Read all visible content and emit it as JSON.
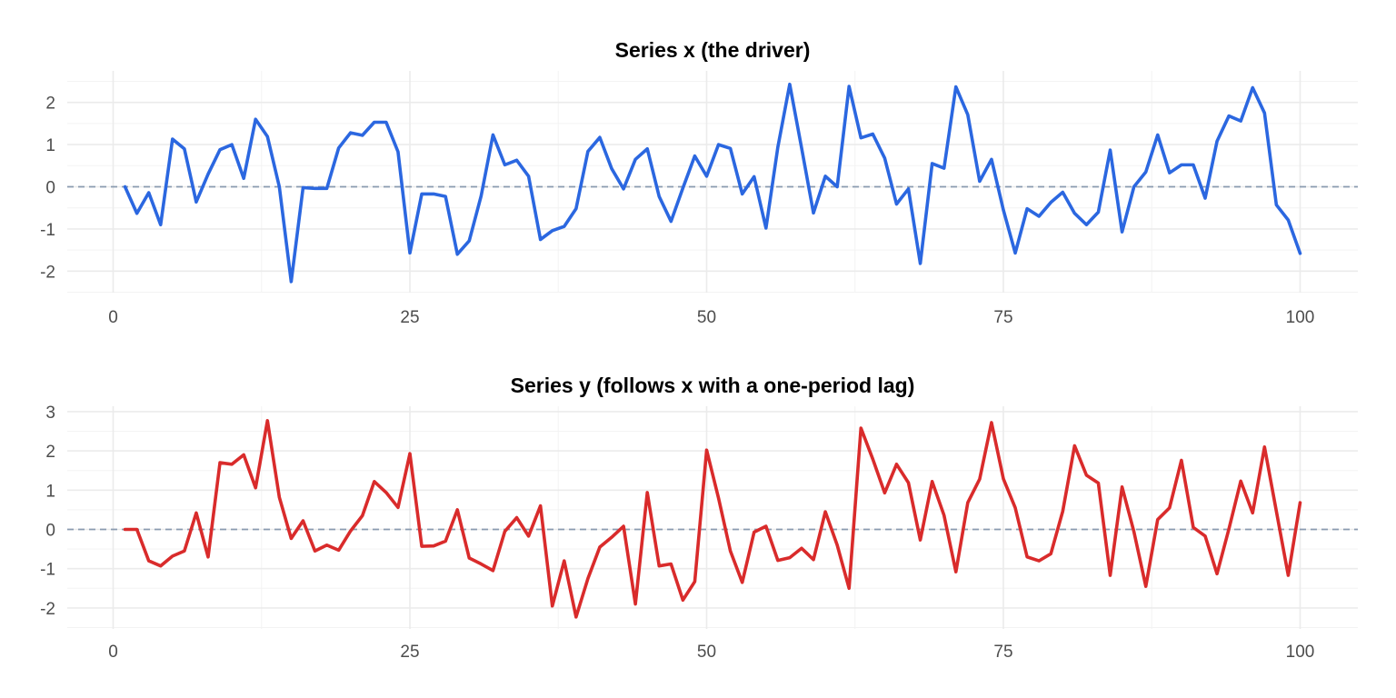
{
  "chart_data": [
    {
      "type": "line",
      "title": "Series x (the driver)",
      "xlabel": "",
      "ylabel": "",
      "xlim": [
        0,
        100
      ],
      "ylim": [
        -2.25,
        2.45
      ],
      "x_ticks": [
        0,
        25,
        50,
        75,
        100
      ],
      "x_tick_labels": [
        "0",
        "25",
        "50",
        "75",
        "100"
      ],
      "y_ticks": [
        -2,
        -1,
        0,
        1,
        2
      ],
      "y_tick_labels": [
        "-2",
        "-1",
        "0",
        "1",
        "2"
      ],
      "grid": true,
      "reference_line": {
        "y": 0,
        "style": "dashed",
        "color": "#8a9bb0"
      },
      "series": [
        {
          "color": "#2b67e0",
          "x": [
            1,
            2,
            3,
            4,
            5,
            6,
            7,
            8,
            9,
            10,
            11,
            12,
            13,
            14,
            15,
            16,
            17,
            18,
            19,
            20,
            21,
            22,
            23,
            24,
            25,
            26,
            27,
            28,
            29,
            30,
            31,
            32,
            33,
            34,
            35,
            36,
            37,
            38,
            39,
            40,
            41,
            42,
            43,
            44,
            45,
            46,
            47,
            48,
            49,
            50,
            51,
            52,
            53,
            54,
            55,
            56,
            57,
            58,
            59,
            60,
            61,
            62,
            63,
            64,
            65,
            66,
            67,
            68,
            69,
            70,
            71,
            72,
            73,
            74,
            75,
            76,
            77,
            78,
            79,
            80,
            81,
            82,
            83,
            84,
            85,
            86,
            87,
            88,
            89,
            90,
            91,
            92,
            93,
            94,
            95,
            96,
            97,
            98,
            99,
            100
          ],
          "values": [
            0.0,
            -0.63,
            -0.14,
            -0.9,
            1.13,
            0.9,
            -0.36,
            0.3,
            0.88,
            1.0,
            0.2,
            1.6,
            1.19,
            0.0,
            -2.25,
            -0.02,
            -0.04,
            -0.04,
            0.92,
            1.28,
            1.22,
            1.53,
            1.53,
            0.83,
            -1.57,
            -0.17,
            -0.17,
            -0.23,
            -1.6,
            -1.28,
            -0.22,
            1.23,
            0.52,
            0.63,
            0.25,
            -1.25,
            -1.04,
            -0.94,
            -0.52,
            0.84,
            1.17,
            0.43,
            -0.05,
            0.65,
            0.9,
            -0.23,
            -0.82,
            -0.03,
            0.73,
            0.25,
            1.0,
            0.91,
            -0.17,
            0.24,
            -0.98,
            0.94,
            2.43,
            0.92,
            -0.62,
            0.25,
            0.0,
            2.38,
            1.16,
            1.25,
            0.68,
            -0.41,
            -0.05,
            -1.82,
            0.55,
            0.44,
            2.37,
            1.71,
            0.13,
            0.65,
            -0.55,
            -1.57,
            -0.52,
            -0.7,
            -0.37,
            -0.13,
            -0.63,
            -0.9,
            -0.6,
            0.87,
            -1.07,
            0.0,
            0.35,
            1.23,
            0.33,
            0.52,
            0.52,
            -0.27,
            1.08,
            1.68,
            1.56,
            2.35,
            1.75,
            -0.43,
            -0.79,
            -1.58
          ]
        }
      ]
    },
    {
      "type": "line",
      "title": "Series y (follows x with a one-period lag)",
      "xlabel": "",
      "ylabel": "",
      "xlim": [
        0,
        100
      ],
      "ylim": [
        -2.25,
        2.8
      ],
      "x_ticks": [
        0,
        25,
        50,
        75,
        100
      ],
      "x_tick_labels": [
        "0",
        "25",
        "50",
        "75",
        "100"
      ],
      "y_ticks": [
        -2,
        -1,
        0,
        1,
        2,
        3
      ],
      "y_tick_labels": [
        "-2",
        "-1",
        "0",
        "1",
        "2",
        "3"
      ],
      "grid": true,
      "reference_line": {
        "y": 0,
        "style": "dashed",
        "color": "#8a9bb0"
      },
      "series": [
        {
          "color": "#d92b2b",
          "x": [
            1,
            2,
            3,
            4,
            5,
            6,
            7,
            8,
            9,
            10,
            11,
            12,
            13,
            14,
            15,
            16,
            17,
            18,
            19,
            20,
            21,
            22,
            23,
            24,
            25,
            26,
            27,
            28,
            29,
            30,
            31,
            32,
            33,
            34,
            35,
            36,
            37,
            38,
            39,
            40,
            41,
            42,
            43,
            44,
            45,
            46,
            47,
            48,
            49,
            50,
            51,
            52,
            53,
            54,
            55,
            56,
            57,
            58,
            59,
            60,
            61,
            62,
            63,
            64,
            65,
            66,
            67,
            68,
            69,
            70,
            71,
            72,
            73,
            74,
            75,
            76,
            77,
            78,
            79,
            80,
            81,
            82,
            83,
            84,
            85,
            86,
            87,
            88,
            89,
            90,
            91,
            92,
            93,
            94,
            95,
            96,
            97,
            98,
            99,
            100
          ],
          "values": [
            0.0,
            0.0,
            -0.8,
            -0.93,
            -0.68,
            -0.55,
            0.42,
            -0.7,
            1.7,
            1.66,
            1.9,
            1.06,
            2.77,
            0.82,
            -0.23,
            0.22,
            -0.55,
            -0.4,
            -0.53,
            -0.04,
            0.35,
            1.22,
            0.94,
            0.56,
            1.93,
            -0.43,
            -0.42,
            -0.3,
            0.5,
            -0.73,
            -0.88,
            -1.05,
            -0.05,
            0.3,
            -0.17,
            0.6,
            -1.95,
            -0.8,
            -2.23,
            -1.25,
            -0.45,
            -0.2,
            0.08,
            -1.9,
            0.94,
            -0.93,
            -0.88,
            -1.8,
            -1.33,
            2.02,
            0.8,
            -0.55,
            -1.35,
            -0.07,
            0.08,
            -0.79,
            -0.72,
            -0.48,
            -0.77,
            0.45,
            -0.4,
            -1.5,
            2.58,
            1.79,
            0.93,
            1.66,
            1.19,
            -0.27,
            1.22,
            0.36,
            -1.08,
            0.68,
            1.28,
            2.72,
            1.29,
            0.55,
            -0.7,
            -0.8,
            -0.62,
            0.46,
            2.13,
            1.38,
            1.18,
            -1.17,
            1.08,
            -0.06,
            -1.45,
            0.25,
            0.55,
            1.76,
            0.05,
            -0.17,
            -1.13,
            0.01,
            1.23,
            0.42,
            2.1,
            0.46,
            -1.17,
            0.68
          ]
        }
      ]
    }
  ]
}
